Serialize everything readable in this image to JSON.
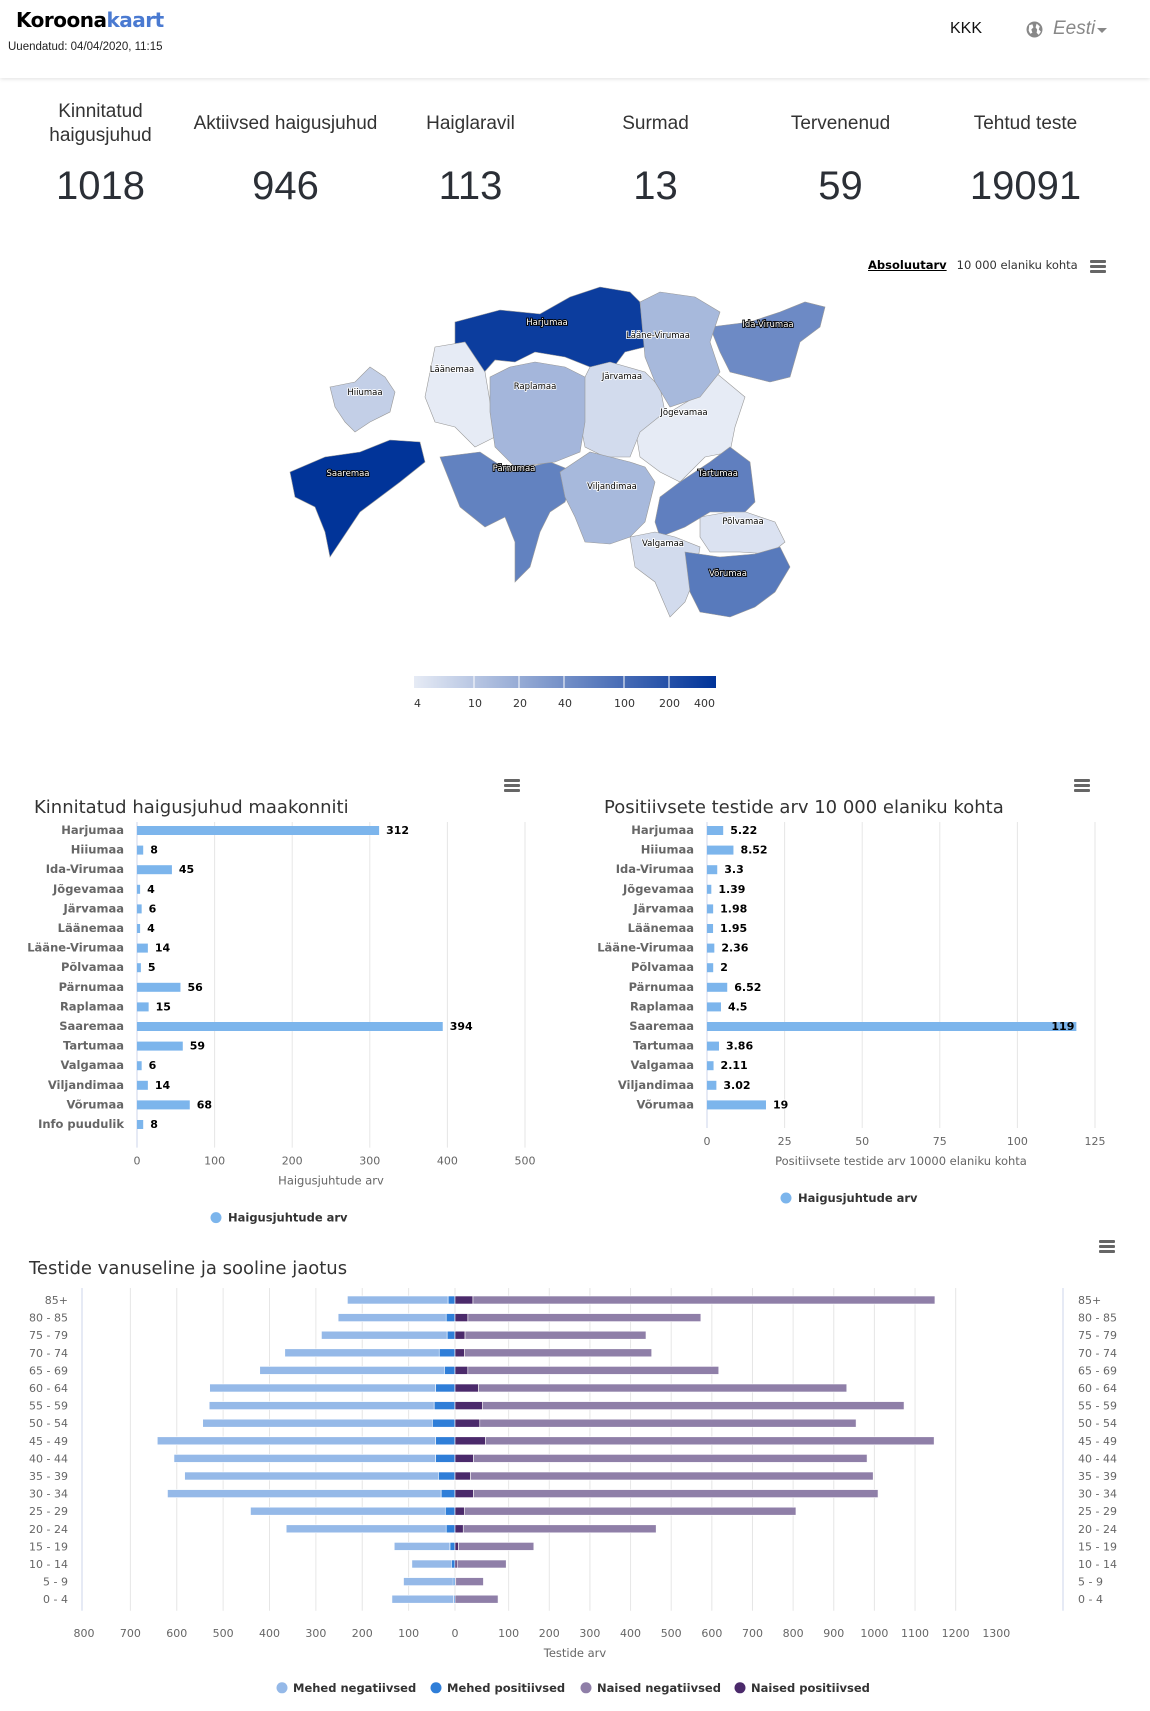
{
  "header": {
    "brand_main": "Koroona",
    "brand_accent": "kaart",
    "updated": "Uuendatud: 04/04/2020, 11:15",
    "faq_link": "KKK",
    "language": "Eesti",
    "language_icon": "globe-icon"
  },
  "stats": [
    {
      "label": "Kinnitatud haigusjuhud",
      "value": "1018"
    },
    {
      "label": "Aktiivsed haigusjuhud",
      "value": "946"
    },
    {
      "label": "Haiglaravil",
      "value": "113"
    },
    {
      "label": "Surmad",
      "value": "13"
    },
    {
      "label": "Tervenenud",
      "value": "59"
    },
    {
      "label": "Tehtud teste",
      "value": "19091"
    }
  ],
  "map": {
    "toggle_active": "Absoluutarv",
    "toggle_inactive": "10 000 elaniku kohta",
    "menu_icon": "hamburger-menu-icon",
    "legend_ticks": [
      "4",
      "10",
      "20",
      "40",
      "100",
      "200",
      "400"
    ],
    "color_min": "#e6ebf5",
    "color_max": "#003399",
    "regions": [
      {
        "name": "Harjumaa",
        "value": 312
      },
      {
        "name": "Hiiumaa",
        "value": 8
      },
      {
        "name": "Ida-Virumaa",
        "value": 45
      },
      {
        "name": "Jõgevamaa",
        "value": 4
      },
      {
        "name": "Järvamaa",
        "value": 6
      },
      {
        "name": "Läänemaa",
        "value": 4
      },
      {
        "name": "Lääne-Virumaa",
        "value": 14
      },
      {
        "name": "Põlvamaa",
        "value": 5
      },
      {
        "name": "Pärnumaa",
        "value": 56
      },
      {
        "name": "Raplamaa",
        "value": 15
      },
      {
        "name": "Saaremaa",
        "value": 394
      },
      {
        "name": "Tartumaa",
        "value": 59
      },
      {
        "name": "Valgamaa",
        "value": 6
      },
      {
        "name": "Viljandimaa",
        "value": 14
      },
      {
        "name": "Võrumaa",
        "value": 68
      }
    ]
  },
  "chart_data": [
    {
      "type": "bar",
      "title": "Kinnitatud haigusjuhud maakonniti",
      "categories": [
        "Harjumaa",
        "Hiiumaa",
        "Ida-Virumaa",
        "Jõgevamaa",
        "Järvamaa",
        "Läänemaa",
        "Lääne-Virumaa",
        "Põlvamaa",
        "Pärnumaa",
        "Raplamaa",
        "Saaremaa",
        "Tartumaa",
        "Valgamaa",
        "Viljandimaa",
        "Võrumaa",
        "Info puudulik"
      ],
      "values": [
        312,
        8,
        45,
        4,
        6,
        4,
        14,
        5,
        56,
        15,
        394,
        59,
        6,
        14,
        68,
        8
      ],
      "data_labels": [
        "312",
        "8",
        "45",
        "4",
        "6",
        "4",
        "14",
        "5",
        "56",
        "15",
        "394",
        "59",
        "6",
        "14",
        "68",
        "8"
      ],
      "xlabel": "Haigusjuhtude arv",
      "ylabel": "",
      "xlim": [
        0,
        500
      ],
      "ticks": [
        "0",
        "100",
        "200",
        "300",
        "400",
        "500"
      ],
      "tick_values": [
        0,
        100,
        200,
        300,
        400,
        500
      ],
      "legend": [
        "Haigusjuhtude arv"
      ],
      "legend_position": "bottom",
      "grid": true,
      "color": "#7cb5ec"
    },
    {
      "type": "bar",
      "title": "Positiivsete testide arv 10 000 elaniku kohta",
      "categories": [
        "Harjumaa",
        "Hiiumaa",
        "Ida-Virumaa",
        "Jõgevamaa",
        "Järvamaa",
        "Läänemaa",
        "Lääne-Virumaa",
        "Põlvamaa",
        "Pärnumaa",
        "Raplamaa",
        "Saaremaa",
        "Tartumaa",
        "Valgamaa",
        "Viljandimaa",
        "Võrumaa"
      ],
      "values": [
        5.22,
        8.52,
        3.3,
        1.39,
        1.98,
        1.95,
        2.36,
        2,
        6.52,
        4.5,
        119,
        3.86,
        2.11,
        3.02,
        19
      ],
      "data_labels": [
        "5.22",
        "8.52",
        "3.3",
        "1.39",
        "1.98",
        "1.95",
        "2.36",
        "2",
        "6.52",
        "4.5",
        "119",
        "3.86",
        "2.11",
        "3.02",
        "19"
      ],
      "xlabel": "Positiivsete testide arv 10000 elaniku kohta",
      "ylabel": "",
      "xlim": [
        0,
        125
      ],
      "ticks": [
        "0",
        "25",
        "50",
        "75",
        "100",
        "125"
      ],
      "tick_values": [
        0,
        25,
        50,
        75,
        100,
        125
      ],
      "legend": [
        "Haigusjuhtude arv"
      ],
      "legend_position": "bottom",
      "grid": true,
      "color": "#7cb5ec"
    },
    {
      "type": "bar",
      "subtype": "population-pyramid-stacked",
      "title": "Testide vanuseline ja sooline jaotus",
      "categories": [
        "85+",
        "80 - 85",
        "75 - 79",
        "70 - 74",
        "65 - 69",
        "60 - 64",
        "55 - 59",
        "50 - 54",
        "45 - 49",
        "40 - 44",
        "35 - 39",
        "30 - 34",
        "25 - 29",
        "20 - 24",
        "15 - 19",
        "10 - 14",
        "5 - 9",
        "0 - 4"
      ],
      "series": [
        {
          "name": "Mehed negatiivsed",
          "side": "left",
          "color": "#95b9e8",
          "values": [
            217,
            233,
            271,
            333,
            398,
            487,
            485,
            495,
            600,
            564,
            547,
            590,
            420,
            345,
            120,
            85,
            107,
            133
          ]
        },
        {
          "name": "Mehed positiivsed",
          "side": "left",
          "color": "#2f7ed8",
          "values": [
            15,
            19,
            17,
            34,
            23,
            42,
            45,
            49,
            42,
            42,
            36,
            30,
            21,
            19,
            11,
            8,
            4,
            3
          ]
        },
        {
          "name": "Naised negatiivsed",
          "side": "right",
          "color": "#8f7fa8",
          "values": [
            1106,
            543,
            415,
            430,
            587,
            876,
            1007,
            896,
            1074,
            938,
            960,
            965,
            785,
            444,
            155,
            90,
            37,
            74
          ]
        },
        {
          "name": "Naised positiivsed",
          "side": "right",
          "color": "#4b2a6b",
          "values": [
            43,
            30,
            23,
            22,
            30,
            56,
            66,
            59,
            73,
            44,
            37,
            44,
            22,
            19,
            7,
            4,
            1,
            0
          ]
        }
      ],
      "xlabel": "Testide arv",
      "left_ticks": [
        "800",
        "700",
        "600",
        "500",
        "400",
        "300",
        "200",
        "100",
        "0"
      ],
      "left_tick_values": [
        800,
        700,
        600,
        500,
        400,
        300,
        200,
        100,
        0
      ],
      "right_ticks": [
        "100",
        "200",
        "300",
        "400",
        "500",
        "600",
        "700",
        "800",
        "900",
        "1000",
        "1100",
        "1200",
        "1300"
      ],
      "right_tick_values": [
        100,
        200,
        300,
        400,
        500,
        600,
        700,
        800,
        900,
        1000,
        1100,
        1200,
        1300
      ],
      "left_xlim": [
        0,
        800
      ],
      "right_xlim": [
        0,
        1300
      ],
      "legend": [
        "Mehed negatiivsed",
        "Mehed positiivsed",
        "Naised negatiivsed",
        "Naised positiivsed"
      ],
      "legend_position": "bottom",
      "grid": true
    }
  ]
}
